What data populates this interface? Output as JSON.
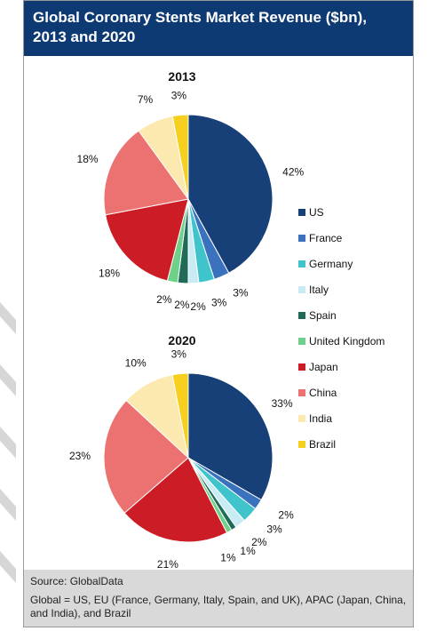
{
  "header": {
    "title": "Global Coronary Stents Market Revenue ($bn),\n2013 and 2020"
  },
  "footer": {
    "source": "Source: GlobalData",
    "note": "Global = US, EU (France, Germany, Italy, Spain, and UK), APAC (Japan, China, and India), and Brazil"
  },
  "colors": {
    "US": "#173f78",
    "France": "#3b72bd",
    "Germany": "#3fc4cc",
    "Italy": "#c9ecf4",
    "Spain": "#1f6b58",
    "United Kingdom": "#6fd08a",
    "Japan": "#cc1d26",
    "China": "#ec7272",
    "India": "#fbe9b0",
    "Brazil": "#f7cf1e"
  },
  "chart_data": [
    {
      "type": "pie",
      "title": "2013",
      "categories": [
        "US",
        "France",
        "Germany",
        "Italy",
        "Spain",
        "United Kingdom",
        "Japan",
        "China",
        "India",
        "Brazil"
      ],
      "values": [
        42,
        3,
        3,
        2,
        2,
        2,
        18,
        18,
        7,
        3
      ],
      "labels": [
        "42%",
        "3%",
        "3%",
        "2%",
        "2%",
        "2%",
        "18%",
        "18%",
        "7%",
        "3%"
      ],
      "legend": "right"
    },
    {
      "type": "pie",
      "title": "2020",
      "categories": [
        "US",
        "France",
        "Germany",
        "Italy",
        "Spain",
        "United Kingdom",
        "Japan",
        "China",
        "India",
        "Brazil"
      ],
      "values": [
        33,
        2,
        3,
        2,
        1,
        1,
        21,
        23,
        10,
        3
      ],
      "labels": [
        "33%",
        "2%",
        "3%",
        "2%",
        "1%",
        "1%",
        "21%",
        "23%",
        "10%",
        "3%"
      ],
      "legend": "right"
    }
  ],
  "legend": [
    "US",
    "France",
    "Germany",
    "Italy",
    "Spain",
    "United Kingdom",
    "Japan",
    "China",
    "India",
    "Brazil"
  ]
}
